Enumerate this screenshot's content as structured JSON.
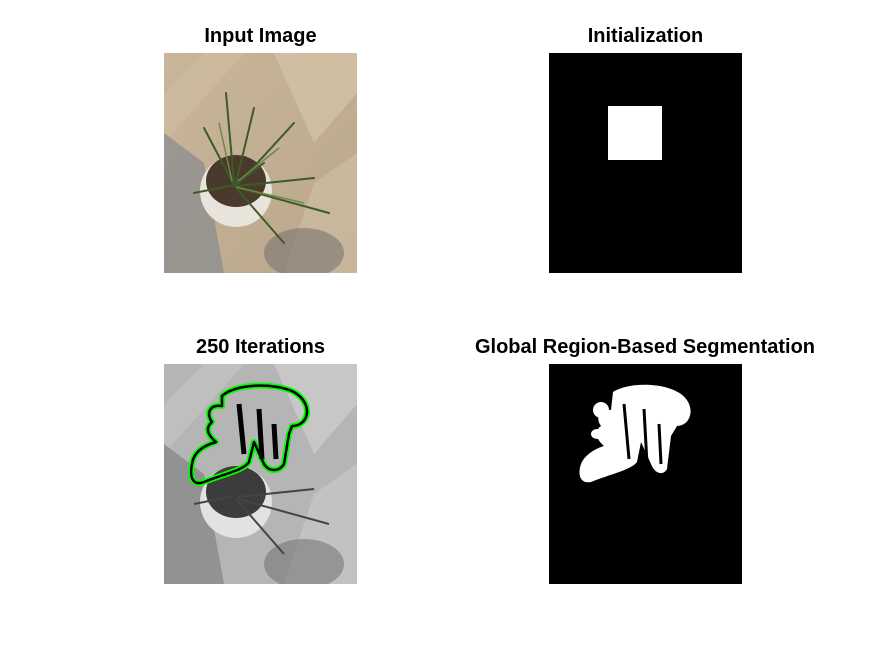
{
  "figure": {
    "panels": [
      {
        "title": "Input Image",
        "image": "color-photo-potted-plant",
        "mode": "color"
      },
      {
        "title": "Initialization",
        "image": "binary-mask-square",
        "mode": "binary"
      },
      {
        "title": "250 Iterations",
        "image": "grayscale-photo-with-contour",
        "mode": "grayscale"
      },
      {
        "title": "Global Region-Based Segmentation",
        "image": "binary-segmentation-mask",
        "mode": "binary"
      }
    ],
    "colors": {
      "background": "#ffffff",
      "contour": "#00ff00",
      "mask_foreground": "#ffffff",
      "mask_background": "#000000"
    }
  }
}
